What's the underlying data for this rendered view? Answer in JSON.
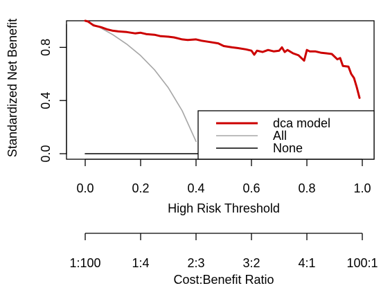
{
  "chart_data": {
    "type": "line",
    "title": "",
    "xlabel": "High Risk Threshold",
    "ylabel": "Standardized Net Benefit",
    "xlim": [
      0,
      1
    ],
    "ylim": [
      0,
      1
    ],
    "x_ticks": [
      "0.0",
      "0.2",
      "0.4",
      "0.6",
      "0.8",
      "1.0"
    ],
    "y_ticks": [
      "0.0",
      "0.4",
      "0.8"
    ],
    "y_tick_values": [
      0,
      0.4,
      0.8
    ],
    "grid": false,
    "legend_position": "bottom-right",
    "secondary_axis": {
      "label": "Cost:Benefit Ratio",
      "ticks": [
        "1:100",
        "1:4",
        "2:3",
        "3:2",
        "4:1",
        "100:1"
      ]
    },
    "series": [
      {
        "name": "dca model",
        "color": "#cc0000",
        "x": [
          0.0,
          0.01,
          0.02,
          0.03,
          0.05,
          0.06,
          0.08,
          0.1,
          0.12,
          0.15,
          0.18,
          0.2,
          0.22,
          0.25,
          0.27,
          0.3,
          0.32,
          0.35,
          0.37,
          0.4,
          0.42,
          0.45,
          0.48,
          0.5,
          0.53,
          0.55,
          0.58,
          0.6,
          0.61,
          0.62,
          0.64,
          0.66,
          0.68,
          0.7,
          0.71,
          0.72,
          0.73,
          0.75,
          0.77,
          0.79,
          0.8,
          0.81,
          0.83,
          0.85,
          0.87,
          0.89,
          0.91,
          0.92,
          0.93,
          0.95,
          0.96,
          0.97,
          0.98,
          0.99
        ],
        "y": [
          1.0,
          0.995,
          0.98,
          0.965,
          0.955,
          0.95,
          0.935,
          0.925,
          0.92,
          0.915,
          0.905,
          0.91,
          0.9,
          0.895,
          0.885,
          0.88,
          0.875,
          0.86,
          0.855,
          0.86,
          0.85,
          0.84,
          0.83,
          0.81,
          0.8,
          0.795,
          0.785,
          0.775,
          0.745,
          0.775,
          0.765,
          0.78,
          0.77,
          0.775,
          0.8,
          0.765,
          0.78,
          0.755,
          0.74,
          0.7,
          0.78,
          0.77,
          0.77,
          0.76,
          0.755,
          0.75,
          0.71,
          0.72,
          0.66,
          0.655,
          0.6,
          0.57,
          0.5,
          0.42
        ]
      },
      {
        "name": "All",
        "color": "#a6a6a6",
        "x": [
          0.0,
          0.05,
          0.1,
          0.15,
          0.2,
          0.25,
          0.3,
          0.35,
          0.4
        ],
        "y": [
          1.0,
          0.953,
          0.895,
          0.824,
          0.738,
          0.631,
          0.496,
          0.323,
          0.092
        ]
      },
      {
        "name": "None",
        "color": "#000000",
        "x": [
          0.0,
          1.0
        ],
        "y": [
          0.0,
          0.0
        ]
      }
    ]
  }
}
